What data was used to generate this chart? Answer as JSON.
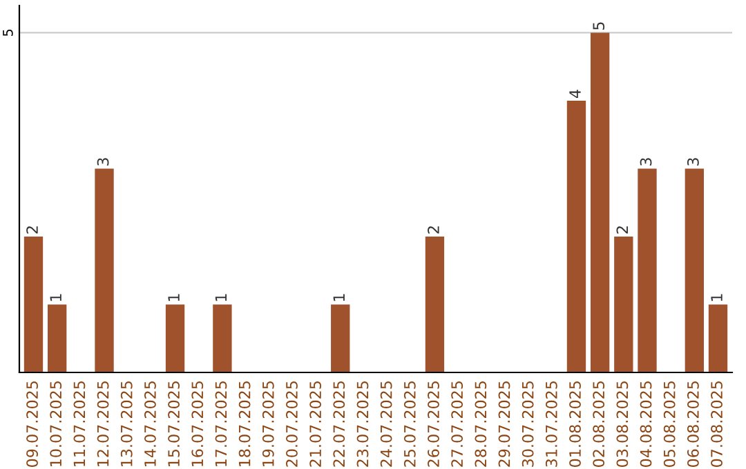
{
  "chart_data": {
    "type": "bar",
    "categories": [
      "09.07.2025",
      "10.07.2025",
      "11.07.2025",
      "12.07.2025",
      "13.07.2025",
      "14.07.2025",
      "15.07.2025",
      "16.07.2025",
      "17.07.2025",
      "18.07.2025",
      "19.07.2025",
      "20.07.2025",
      "21.07.2025",
      "22.07.2025",
      "23.07.2025",
      "24.07.2025",
      "25.07.2025",
      "26.07.2025",
      "27.07.2025",
      "28.07.2025",
      "29.07.2025",
      "30.07.2025",
      "31.07.2025",
      "01.08.2025",
      "02.08.2025",
      "03.08.2025",
      "04.08.2025",
      "05.08.2025",
      "06.08.2025",
      "07.08.2025"
    ],
    "values": [
      2,
      1,
      0,
      3,
      0,
      0,
      1,
      0,
      1,
      0,
      0,
      0,
      0,
      1,
      0,
      0,
      0,
      2,
      0,
      0,
      0,
      0,
      0,
      4,
      5,
      2,
      3,
      0,
      3,
      1
    ],
    "value_labels": [
      "2",
      "1",
      null,
      "3",
      null,
      null,
      "1",
      null,
      "1",
      null,
      null,
      null,
      null,
      "1",
      null,
      null,
      null,
      "2",
      null,
      null,
      null,
      null,
      null,
      "4",
      "5",
      "2",
      "3",
      null,
      "3",
      "1"
    ],
    "color": "#a0522d",
    "ylim": [
      0,
      5.4
    ],
    "yticks": [
      5
    ],
    "grid": "y"
  }
}
